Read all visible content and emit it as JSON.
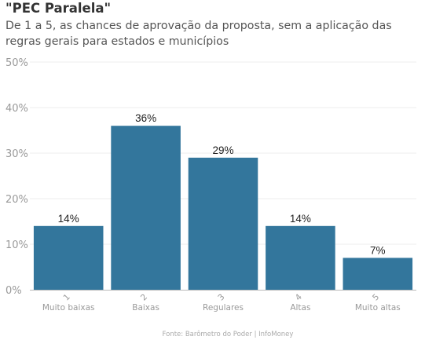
{
  "header": {
    "title": "\"PEC Paralela\"",
    "subtitle": "De 1 a 5, as chances de aprovação da proposta, sem a aplicação das regras gerais para estados e municípios"
  },
  "source": "Fonte: Barômetro do Poder | InfoMoney",
  "chart_data": {
    "type": "bar",
    "categories": [
      "1",
      "2",
      "3",
      "4",
      "5"
    ],
    "category_sublabels": [
      "Muito baixas",
      "Baixas",
      "Regulares",
      "Altas",
      "Muito altas"
    ],
    "values": [
      14,
      36,
      29,
      14,
      7
    ],
    "data_labels": [
      "14%",
      "36%",
      "29%",
      "14%",
      "7%"
    ],
    "yticks": [
      "0%",
      "10%",
      "20%",
      "30%",
      "40%",
      "50%"
    ],
    "ylim": [
      0,
      50
    ],
    "grid": true,
    "bar_color": "#33769C"
  }
}
